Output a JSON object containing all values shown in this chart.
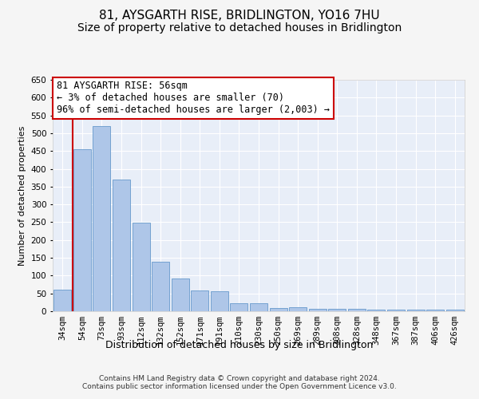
{
  "title": "81, AYSGARTH RISE, BRIDLINGTON, YO16 7HU",
  "subtitle": "Size of property relative to detached houses in Bridlington",
  "xlabel": "Distribution of detached houses by size in Bridlington",
  "ylabel": "Number of detached properties",
  "footer_line1": "Contains HM Land Registry data © Crown copyright and database right 2024.",
  "footer_line2": "Contains public sector information licensed under the Open Government Licence v3.0.",
  "bin_labels": [
    "34sqm",
    "54sqm",
    "73sqm",
    "93sqm",
    "112sqm",
    "132sqm",
    "152sqm",
    "171sqm",
    "191sqm",
    "210sqm",
    "230sqm",
    "250sqm",
    "269sqm",
    "289sqm",
    "308sqm",
    "328sqm",
    "348sqm",
    "367sqm",
    "387sqm",
    "406sqm",
    "426sqm"
  ],
  "bar_values": [
    60,
    455,
    520,
    370,
    248,
    140,
    93,
    58,
    55,
    22,
    22,
    10,
    12,
    7,
    7,
    6,
    5,
    5,
    4,
    5,
    4
  ],
  "bar_color": "#aec6e8",
  "bar_edge_color": "#6699cc",
  "vline_color": "#cc0000",
  "annotation_line1": "81 AYSGARTH RISE: 56sqm",
  "annotation_line2": "← 3% of detached houses are smaller (70)",
  "annotation_line3": "96% of semi-detached houses are larger (2,003) →",
  "annotation_box_color": "#ffffff",
  "annotation_box_edge": "#cc0000",
  "ylim": [
    0,
    650
  ],
  "yticks": [
    0,
    50,
    100,
    150,
    200,
    250,
    300,
    350,
    400,
    450,
    500,
    550,
    600,
    650
  ],
  "background_color": "#e8eef8",
  "grid_color": "#ffffff",
  "title_fontsize": 11,
  "subtitle_fontsize": 10,
  "xlabel_fontsize": 9,
  "ylabel_fontsize": 8,
  "tick_fontsize": 7.5,
  "annotation_fontsize": 8.5,
  "footer_fontsize": 6.5
}
